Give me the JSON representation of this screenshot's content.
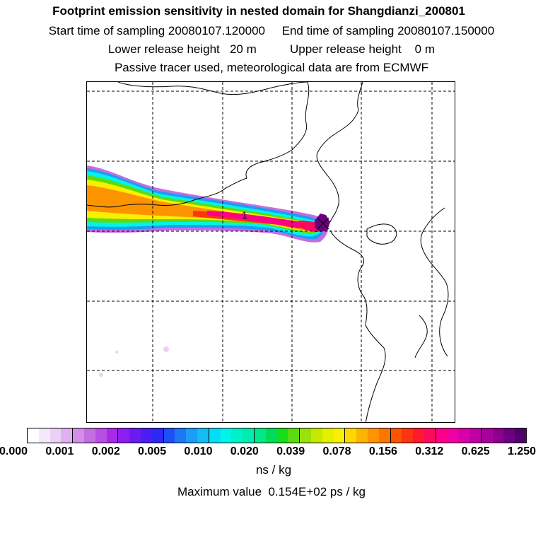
{
  "header": {
    "title": "Footprint emission sensitivity in nested domain for Shangdianzi_200801",
    "line2": "Start time of sampling 20080107.120000     End time of sampling 20080107.150000",
    "line3": "Lower release height   20 m          Upper release height    0 m",
    "line4": "Passive tracer used, meteorological data are from ECMWF"
  },
  "map": {
    "station_label": "1",
    "station_marker": "x-marker-icon",
    "grid_lines": "dashed"
  },
  "legend": {
    "tick_labels": [
      "0.000",
      "0.001",
      "0.002",
      "0.005",
      "0.010",
      "0.020",
      "0.039",
      "0.078",
      "0.156",
      "0.312",
      "0.625",
      "1.250"
    ],
    "colors": [
      "#ffffff",
      "#f6e8fb",
      "#ecd0f5",
      "#e0b0f0",
      "#d48ee8",
      "#c46ee2",
      "#b64ee4",
      "#a82ae8",
      "#8c1ef0",
      "#6a1cf0",
      "#4c1cf2",
      "#2e28f4",
      "#1c50f6",
      "#1c78f6",
      "#1c9cf4",
      "#14bcf2",
      "#00e0f4",
      "#00f4e8",
      "#00f0cc",
      "#00ecb0",
      "#00e88a",
      "#00dc5a",
      "#18dc18",
      "#5cdc10",
      "#9ce00c",
      "#c4e800",
      "#e4f000",
      "#f8f000",
      "#fcd800",
      "#fcb400",
      "#fc9400",
      "#fc7600",
      "#fc5400",
      "#fc3410",
      "#fc1a2c",
      "#fc0a5c",
      "#fc0088",
      "#f000a0",
      "#d800a8",
      "#c000a4",
      "#a8009c",
      "#8c0090",
      "#6c0080",
      "#50006c"
    ],
    "unit": "ns / kg",
    "maximum": "Maximum value  0.154E+02 ps / kg"
  }
}
